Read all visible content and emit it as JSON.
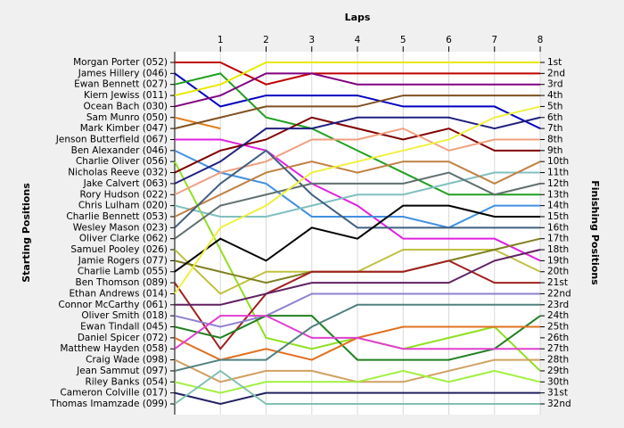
{
  "chart_data": {
    "type": "bump",
    "title": "Laps",
    "y_label": "Starting Positions",
    "y2_label": "Finishing Positions",
    "x": [
      0,
      1,
      2,
      3,
      4,
      5,
      6,
      7,
      8
    ],
    "xlim": [
      0,
      8
    ],
    "xticks": [
      1,
      2,
      3,
      4,
      5,
      6,
      7,
      8
    ],
    "ylim": [
      1,
      32
    ],
    "reversed": true,
    "grid": true,
    "y2ticks": [
      {
        "value": 1,
        "label": "1st"
      },
      {
        "value": 2,
        "label": "2nd"
      },
      {
        "value": 3,
        "label": "3rd"
      },
      {
        "value": 4,
        "label": "4th"
      },
      {
        "value": 5,
        "label": "5th"
      },
      {
        "value": 6,
        "label": "6th"
      },
      {
        "value": 7,
        "label": "7th"
      },
      {
        "value": 8,
        "label": "8th"
      },
      {
        "value": 9,
        "label": "9th"
      },
      {
        "value": 10,
        "label": "10th"
      },
      {
        "value": 11,
        "label": "11th"
      },
      {
        "value": 12,
        "label": "12th"
      },
      {
        "value": 13,
        "label": "13th"
      },
      {
        "value": 14,
        "label": "14th"
      },
      {
        "value": 15,
        "label": "15th"
      },
      {
        "value": 16,
        "label": "16th"
      },
      {
        "value": 17,
        "label": "17th"
      },
      {
        "value": 18,
        "label": "18th"
      },
      {
        "value": 19,
        "label": "19th"
      },
      {
        "value": 20,
        "label": "20th"
      },
      {
        "value": 21,
        "label": "21st"
      },
      {
        "value": 22,
        "label": "22nd"
      },
      {
        "value": 23,
        "label": "23rd"
      },
      {
        "value": 24,
        "label": "24th"
      },
      {
        "value": 25,
        "label": "25th"
      },
      {
        "value": 26,
        "label": "26th"
      },
      {
        "value": 27,
        "label": "27th"
      },
      {
        "value": 28,
        "label": "28th"
      },
      {
        "value": 29,
        "label": "29th"
      },
      {
        "value": 30,
        "label": "30th"
      },
      {
        "value": 31,
        "label": "31st"
      },
      {
        "value": 32,
        "label": "32nd"
      }
    ],
    "series": [
      {
        "name": "Morgan Porter (052)",
        "color": "#c00000",
        "values": [
          1,
          1,
          3,
          2,
          2,
          2,
          2,
          2,
          2
        ]
      },
      {
        "name": "James Hillery (046)",
        "color": "#0000c0",
        "values": [
          2,
          5,
          4,
          4,
          4,
          5,
          5,
          5,
          7
        ]
      },
      {
        "name": "Ewan Bennett (027)",
        "color": "#20a020",
        "values": [
          3,
          2,
          6,
          7,
          9,
          11,
          13,
          13,
          13
        ]
      },
      {
        "name": "Kiern Jewiss (011)",
        "color": "#e8e800",
        "values": [
          4,
          3,
          1,
          1,
          1,
          1,
          1,
          1,
          1
        ]
      },
      {
        "name": "Ocean Bach (030)",
        "color": "#800080",
        "values": [
          5,
          4,
          2,
          2,
          3,
          3,
          3,
          3,
          3
        ]
      },
      {
        "name": "Sam Munro (050)",
        "color": "#e08020",
        "values": [
          6,
          7,
          null,
          null,
          null,
          null,
          null,
          null,
          null
        ]
      },
      {
        "name": "Mark Kimber (047)",
        "color": "#805020",
        "values": [
          7,
          6,
          5,
          5,
          5,
          4,
          4,
          4,
          4
        ]
      },
      {
        "name": "Jenson Butterfield (067)",
        "color": "#e020e0",
        "values": [
          8,
          8,
          9,
          12,
          14,
          17,
          17,
          17,
          19
        ]
      },
      {
        "name": "Ben Alexander (046)",
        "color": "#4090e0",
        "values": [
          9,
          11,
          12,
          15,
          15,
          15,
          16,
          14,
          14
        ]
      },
      {
        "name": "Charlie Oliver (056)",
        "color": "#90e020",
        "values": [
          10,
          18,
          26,
          27,
          26,
          27,
          26,
          25,
          29
        ]
      },
      {
        "name": "Nicholas Reeve (032)",
        "color": "#800000",
        "values": [
          11,
          9,
          8,
          6,
          7,
          8,
          7,
          9,
          9
        ]
      },
      {
        "name": "Jake Calvert (063)",
        "color": "#202080",
        "values": [
          12,
          10,
          7,
          7,
          6,
          6,
          6,
          7,
          6
        ]
      },
      {
        "name": "Rory Hudson (022)",
        "color": "#f0a080",
        "values": [
          13,
          11,
          10,
          8,
          8,
          7,
          9,
          8,
          8
        ]
      },
      {
        "name": "Chris Lulham (020)",
        "color": "#80c0c0",
        "values": [
          14,
          15,
          15,
          14,
          13,
          13,
          12,
          11,
          11
        ]
      },
      {
        "name": "Charlie Bennett (053)",
        "color": "#c08040",
        "values": [
          15,
          13,
          11,
          10,
          11,
          10,
          10,
          12,
          10
        ]
      },
      {
        "name": "Wesley Mason (023)",
        "color": "#406080",
        "values": [
          16,
          12,
          9,
          13,
          16,
          16,
          16,
          16,
          16
        ]
      },
      {
        "name": "Oliver Clarke (062)",
        "color": "#607070",
        "values": [
          17,
          14,
          13,
          12,
          12,
          12,
          11,
          13,
          12
        ]
      },
      {
        "name": "Samuel Pooley (026)",
        "color": "#c0c040",
        "values": [
          18,
          22,
          20,
          20,
          20,
          18,
          18,
          18,
          20
        ]
      },
      {
        "name": "Jamie Rogers (077)",
        "color": "#808020",
        "values": [
          19,
          20,
          21,
          20,
          20,
          20,
          19,
          18,
          17
        ]
      },
      {
        "name": "Charlie Lamb (055)",
        "color": "#000000",
        "values": [
          20,
          17,
          19,
          16,
          17,
          14,
          14,
          15,
          15
        ]
      },
      {
        "name": "Ben Thomson (089)",
        "color": "#a02020",
        "values": [
          21,
          27,
          22,
          20,
          20,
          20,
          19,
          21,
          21
        ]
      },
      {
        "name": "Ethan Andrews (014)",
        "color": "#f0f040",
        "values": [
          22,
          16,
          14,
          11,
          10,
          9,
          8,
          6,
          5
        ]
      },
      {
        "name": "Connor McCarthy (061)",
        "color": "#602060",
        "values": [
          23,
          23,
          22,
          21,
          21,
          21,
          21,
          19,
          18
        ]
      },
      {
        "name": "Oliver Smith (018)",
        "color": "#9080d0",
        "values": [
          24,
          25,
          24,
          22,
          22,
          22,
          22,
          22,
          22
        ]
      },
      {
        "name": "Ewan Tindall (045)",
        "color": "#208020",
        "values": [
          25,
          26,
          24,
          24,
          28,
          28,
          28,
          27,
          24
        ]
      },
      {
        "name": "Daniel Spicer (072)",
        "color": "#e07020",
        "values": [
          26,
          28,
          27,
          28,
          26,
          25,
          25,
          25,
          25
        ]
      },
      {
        "name": "Matthew Hayden (058)",
        "color": "#e040d0",
        "values": [
          27,
          24,
          24,
          26,
          26,
          27,
          27,
          27,
          27
        ]
      },
      {
        "name": "Craig Wade (098)",
        "color": "#d0a060",
        "values": [
          28,
          30,
          29,
          29,
          30,
          30,
          29,
          28,
          28
        ]
      },
      {
        "name": "Jean Sammut (097)",
        "color": "#508080",
        "values": [
          29,
          28,
          28,
          25,
          23,
          23,
          23,
          23,
          23
        ]
      },
      {
        "name": "Riley Banks (054)",
        "color": "#a0f040",
        "values": [
          30,
          31,
          30,
          30,
          30,
          29,
          30,
          29,
          30
        ]
      },
      {
        "name": "Cameron Colville (017)",
        "color": "#202060",
        "values": [
          31,
          32,
          31,
          31,
          31,
          31,
          31,
          31,
          31
        ]
      },
      {
        "name": "Thomas Imamzade (099)",
        "color": "#80c0b0",
        "values": [
          32,
          29,
          32,
          32,
          32,
          32,
          32,
          32,
          32
        ]
      }
    ]
  }
}
